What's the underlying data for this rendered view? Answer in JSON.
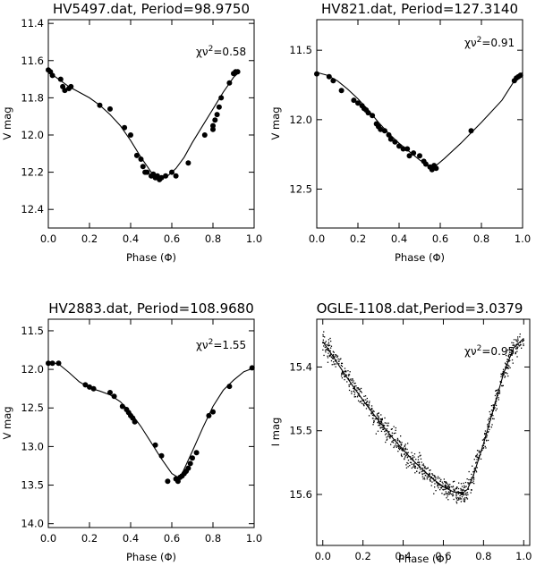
{
  "chart_data": [
    {
      "type": "scatter",
      "title": "HV5497.dat, Period=98.9750",
      "xlabel": "Phase (Φ)",
      "ylabel": "V mag",
      "xlim": [
        0.0,
        1.0
      ],
      "ylim": [
        12.5,
        11.38
      ],
      "y_inverted": true,
      "xticks": [
        "0.0",
        "0.2",
        "0.4",
        "0.6",
        "0.8",
        "1.0"
      ],
      "yticks": [
        "11.4",
        "11.6",
        "11.8",
        "12.0",
        "12.2",
        "12.4"
      ],
      "chi_label": "χν",
      "chi_sup": "2",
      "chi_value": "=0.58",
      "points": {
        "x": [
          0.0,
          0.01,
          0.02,
          0.06,
          0.07,
          0.08,
          0.1,
          0.11,
          0.25,
          0.3,
          0.37,
          0.4,
          0.43,
          0.45,
          0.46,
          0.47,
          0.48,
          0.5,
          0.51,
          0.52,
          0.53,
          0.54,
          0.55,
          0.57,
          0.6,
          0.62,
          0.68,
          0.76,
          0.8,
          0.8,
          0.81,
          0.82,
          0.83,
          0.84,
          0.88,
          0.9,
          0.91,
          0.92
        ],
        "y": [
          11.65,
          11.66,
          11.68,
          11.7,
          11.74,
          11.76,
          11.75,
          11.74,
          11.84,
          11.86,
          11.96,
          12.0,
          12.11,
          12.13,
          12.17,
          12.2,
          12.2,
          12.22,
          12.21,
          12.23,
          12.22,
          12.24,
          12.23,
          12.22,
          12.2,
          12.22,
          12.15,
          12.0,
          11.97,
          11.95,
          11.92,
          11.89,
          11.85,
          11.8,
          11.72,
          11.67,
          11.66,
          11.66
        ]
      },
      "curve": {
        "x": [
          0.0,
          0.05,
          0.1,
          0.15,
          0.2,
          0.25,
          0.3,
          0.35,
          0.4,
          0.45,
          0.5,
          0.55,
          0.58,
          0.62,
          0.66,
          0.7,
          0.75,
          0.8,
          0.85,
          0.9,
          0.93
        ],
        "y": [
          11.66,
          11.7,
          11.74,
          11.77,
          11.8,
          11.84,
          11.89,
          11.95,
          12.03,
          12.12,
          12.2,
          12.23,
          12.22,
          12.18,
          12.12,
          12.04,
          11.95,
          11.86,
          11.77,
          11.69,
          11.66
        ]
      }
    },
    {
      "type": "scatter",
      "title": "HV821.dat, Period=127.3140",
      "xlabel": "Phase (Φ)",
      "ylabel": "V mag",
      "xlim": [
        0.0,
        1.0
      ],
      "ylim": [
        12.78,
        11.28
      ],
      "y_inverted": true,
      "xticks": [
        "0.0",
        "0.2",
        "0.4",
        "0.6",
        "0.8",
        "1.0"
      ],
      "yticks": [
        "11.5",
        "12.0",
        "12.5"
      ],
      "chi_label": "χν",
      "chi_sup": "2",
      "chi_value": "=0.91",
      "points": {
        "x": [
          0.0,
          0.06,
          0.08,
          0.12,
          0.18,
          0.2,
          0.22,
          0.23,
          0.24,
          0.25,
          0.27,
          0.29,
          0.3,
          0.31,
          0.33,
          0.35,
          0.36,
          0.38,
          0.4,
          0.42,
          0.44,
          0.45,
          0.47,
          0.5,
          0.52,
          0.53,
          0.55,
          0.56,
          0.57,
          0.58,
          0.75,
          0.96,
          0.97,
          0.98,
          0.99
        ],
        "y": [
          11.67,
          11.69,
          11.72,
          11.79,
          11.86,
          11.88,
          11.9,
          11.92,
          11.93,
          11.95,
          11.97,
          12.03,
          12.05,
          12.07,
          12.08,
          12.11,
          12.14,
          12.16,
          12.19,
          12.21,
          12.21,
          12.26,
          12.24,
          12.26,
          12.3,
          12.32,
          12.34,
          12.36,
          12.33,
          12.35,
          12.08,
          11.72,
          11.7,
          11.69,
          11.68
        ]
      },
      "curve": {
        "x": [
          0.0,
          0.05,
          0.1,
          0.15,
          0.2,
          0.25,
          0.3,
          0.35,
          0.4,
          0.45,
          0.5,
          0.55,
          0.58,
          0.62,
          0.7,
          0.8,
          0.9,
          0.96,
          1.0
        ],
        "y": [
          11.66,
          11.68,
          11.72,
          11.78,
          11.85,
          11.93,
          12.02,
          12.1,
          12.17,
          12.23,
          12.29,
          12.34,
          12.33,
          12.28,
          12.17,
          12.02,
          11.86,
          11.72,
          11.66
        ]
      }
    },
    {
      "type": "scatter",
      "title": "HV2883.dat, Period=108.9680",
      "xlabel": "Phase (Φ)",
      "ylabel": "V mag",
      "xlim": [
        0.0,
        1.0
      ],
      "ylim": [
        14.05,
        11.35
      ],
      "y_inverted": true,
      "xticks": [
        "0.0",
        "0.2",
        "0.4",
        "0.6",
        "0.8",
        "1.0"
      ],
      "yticks": [
        "11.5",
        "12.0",
        "12.5",
        "13.0",
        "13.5",
        "14.0"
      ],
      "chi_label": "χν",
      "chi_sup": "2",
      "chi_value": "=1.55",
      "points": {
        "x": [
          0.0,
          0.02,
          0.05,
          0.18,
          0.2,
          0.22,
          0.3,
          0.32,
          0.36,
          0.38,
          0.39,
          0.4,
          0.41,
          0.42,
          0.52,
          0.55,
          0.58,
          0.62,
          0.63,
          0.64,
          0.65,
          0.66,
          0.67,
          0.68,
          0.69,
          0.7,
          0.72,
          0.78,
          0.8,
          0.88,
          0.99
        ],
        "y": [
          11.92,
          11.92,
          11.92,
          12.2,
          12.23,
          12.25,
          12.3,
          12.35,
          12.48,
          12.52,
          12.56,
          12.6,
          12.63,
          12.68,
          12.98,
          13.12,
          13.45,
          13.42,
          13.45,
          13.4,
          13.38,
          13.35,
          13.32,
          13.28,
          13.22,
          13.15,
          13.08,
          12.6,
          12.55,
          12.22,
          11.98
        ]
      },
      "curve": {
        "x": [
          0.0,
          0.05,
          0.1,
          0.15,
          0.2,
          0.25,
          0.3,
          0.35,
          0.4,
          0.45,
          0.5,
          0.55,
          0.6,
          0.63,
          0.65,
          0.7,
          0.75,
          0.8,
          0.85,
          0.9,
          0.95,
          1.0
        ],
        "y": [
          11.9,
          11.93,
          12.04,
          12.16,
          12.24,
          12.28,
          12.33,
          12.42,
          12.56,
          12.74,
          12.95,
          13.16,
          13.35,
          13.4,
          13.35,
          13.06,
          12.76,
          12.48,
          12.27,
          12.14,
          12.03,
          11.98
        ]
      }
    },
    {
      "type": "scatter",
      "title": "OGLE-1108.dat,Period=3.0379",
      "xlabel": "Phase (Φ)",
      "ylabel": "I mag",
      "xlim": [
        -0.03,
        1.03
      ],
      "ylim": [
        15.68,
        15.325
      ],
      "y_inverted": true,
      "xticks": [
        "0.0",
        "0.2",
        "0.4",
        "0.6",
        "0.8",
        "1.0"
      ],
      "yticks": [
        "15.4",
        "15.5",
        "15.6"
      ],
      "chi_label": "χν",
      "chi_sup": "2",
      "chi_value": "=0.95",
      "scatter_spread": 0.008,
      "curve": {
        "x": [
          0.0,
          0.05,
          0.1,
          0.15,
          0.2,
          0.25,
          0.3,
          0.35,
          0.4,
          0.45,
          0.5,
          0.55,
          0.6,
          0.65,
          0.7,
          0.72,
          0.75,
          0.8,
          0.85,
          0.9,
          0.95,
          1.0
        ],
        "y": [
          15.36,
          15.383,
          15.407,
          15.43,
          15.452,
          15.473,
          15.493,
          15.512,
          15.53,
          15.547,
          15.562,
          15.576,
          15.588,
          15.596,
          15.597,
          15.592,
          15.57,
          15.52,
          15.465,
          15.41,
          15.37,
          15.355
        ]
      }
    }
  ]
}
